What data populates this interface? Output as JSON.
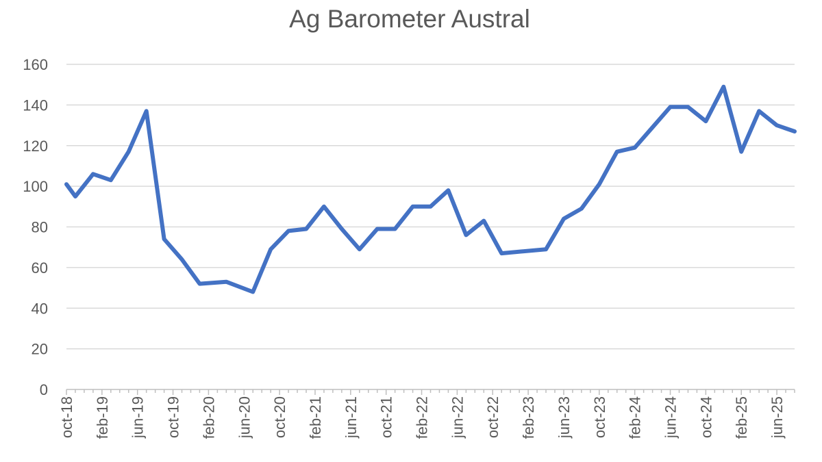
{
  "chart_data": {
    "type": "line",
    "title": "Ag Barometer Austral",
    "xlabel": "",
    "ylabel": "",
    "ylim": [
      0,
      160
    ],
    "yticks": [
      0,
      20,
      40,
      60,
      80,
      100,
      120,
      140,
      160
    ],
    "grid": true,
    "legend": "none",
    "x_range": [
      "2018-10",
      "2025-08"
    ],
    "xtick_labels": [
      {
        "date": "2018-10",
        "label": "oct-18"
      },
      {
        "date": "2019-02",
        "label": "feb-19"
      },
      {
        "date": "2019-06",
        "label": "jun-19"
      },
      {
        "date": "2019-10",
        "label": "oct-19"
      },
      {
        "date": "2020-02",
        "label": "feb-20"
      },
      {
        "date": "2020-06",
        "label": "jun-20"
      },
      {
        "date": "2020-10",
        "label": "oct-20"
      },
      {
        "date": "2021-02",
        "label": "feb-21"
      },
      {
        "date": "2021-06",
        "label": "jun-21"
      },
      {
        "date": "2021-10",
        "label": "oct-21"
      },
      {
        "date": "2022-02",
        "label": "feb-22"
      },
      {
        "date": "2022-06",
        "label": "jun-22"
      },
      {
        "date": "2022-10",
        "label": "oct-22"
      },
      {
        "date": "2023-02",
        "label": "feb-23"
      },
      {
        "date": "2023-06",
        "label": "jun-23"
      },
      {
        "date": "2023-10",
        "label": "oct-23"
      },
      {
        "date": "2024-02",
        "label": "feb-24"
      },
      {
        "date": "2024-06",
        "label": "jun-24"
      },
      {
        "date": "2024-10",
        "label": "oct-24"
      },
      {
        "date": "2025-02",
        "label": "feb-25"
      },
      {
        "date": "2025-06",
        "label": "jun-25"
      }
    ],
    "series": [
      {
        "color": "#4472c4",
        "x": [
          "2018-10",
          "2018-11",
          "2019-01",
          "2019-03",
          "2019-05",
          "2019-07",
          "2019-09",
          "2019-11",
          "2020-01",
          "2020-04",
          "2020-07",
          "2020-09",
          "2020-11",
          "2021-01",
          "2021-03",
          "2021-05",
          "2021-07",
          "2021-09",
          "2021-11",
          "2022-01",
          "2022-03",
          "2022-05",
          "2022-07",
          "2022-09",
          "2022-11",
          "2023-04",
          "2023-06",
          "2023-08",
          "2023-10",
          "2023-12",
          "2024-02",
          "2024-04",
          "2024-06",
          "2024-08",
          "2024-10",
          "2024-12",
          "2025-02",
          "2025-04",
          "2025-06",
          "2025-08"
        ],
        "values": [
          101,
          95,
          106,
          103,
          117,
          137,
          74,
          64,
          52,
          53,
          48,
          69,
          78,
          79,
          90,
          79,
          69,
          79,
          79,
          90,
          90,
          98,
          76,
          83,
          67,
          69,
          84,
          89,
          101,
          117,
          119,
          129,
          139,
          139,
          132,
          149,
          117,
          137,
          130,
          127
        ]
      }
    ]
  }
}
